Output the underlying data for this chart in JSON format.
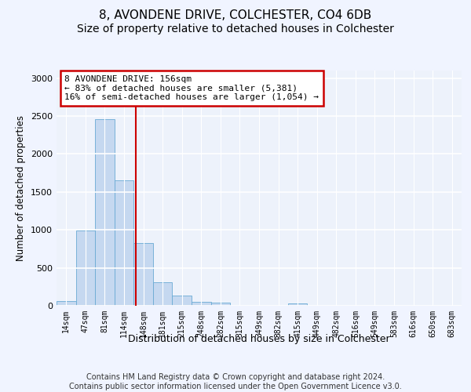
{
  "title1": "8, AVONDENE DRIVE, COLCHESTER, CO4 6DB",
  "title2": "Size of property relative to detached houses in Colchester",
  "xlabel": "Distribution of detached houses by size in Colchester",
  "ylabel": "Number of detached properties",
  "categories": [
    "14sqm",
    "47sqm",
    "81sqm",
    "114sqm",
    "148sqm",
    "181sqm",
    "215sqm",
    "248sqm",
    "282sqm",
    "315sqm",
    "349sqm",
    "382sqm",
    "415sqm",
    "449sqm",
    "482sqm",
    "516sqm",
    "549sqm",
    "583sqm",
    "616sqm",
    "650sqm",
    "683sqm"
  ],
  "values": [
    60,
    990,
    2460,
    1650,
    830,
    305,
    130,
    55,
    45,
    0,
    0,
    0,
    30,
    0,
    0,
    0,
    0,
    0,
    0,
    0,
    0
  ],
  "bar_color": "#c5d8f0",
  "bar_edge_color": "#6aaad4",
  "vline_x": 3.62,
  "vline_color": "#cc0000",
  "ylim": [
    0,
    3100
  ],
  "yticks": [
    0,
    500,
    1000,
    1500,
    2000,
    2500,
    3000
  ],
  "annotation_text": "8 AVONDENE DRIVE: 156sqm\n← 83% of detached houses are smaller (5,381)\n16% of semi-detached houses are larger (1,054) →",
  "annotation_box_color": "#ffffff",
  "annotation_box_edgecolor": "#cc0000",
  "footer_text": "Contains HM Land Registry data © Crown copyright and database right 2024.\nContains public sector information licensed under the Open Government Licence v3.0.",
  "bg_color": "#edf2fb",
  "grid_color": "#ffffff",
  "title1_fontsize": 11,
  "title2_fontsize": 10,
  "xlabel_fontsize": 9,
  "ylabel_fontsize": 8.5,
  "footer_fontsize": 7
}
